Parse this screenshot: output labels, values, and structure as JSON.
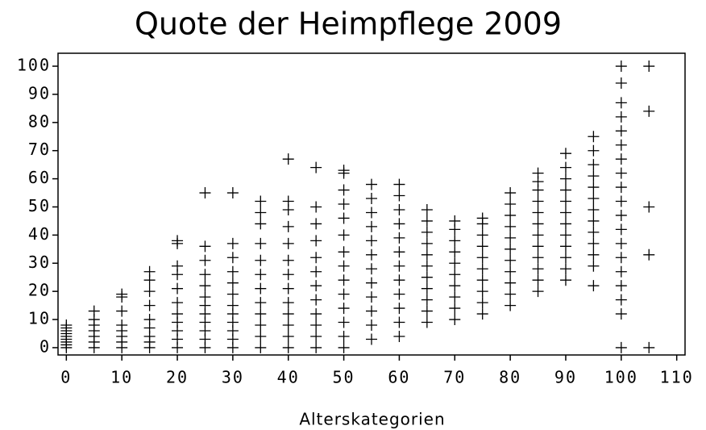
{
  "chart_data": {
    "type": "scatter",
    "title": "Quote der Heimpflege 2009",
    "xlabel": "Alterskategorien",
    "color": "#000000",
    "x": [
      0,
      0,
      0,
      0,
      0,
      0,
      0,
      0,
      0,
      5,
      5,
      5,
      5,
      5,
      5,
      5,
      10,
      10,
      10,
      10,
      10,
      10,
      10,
      10,
      15,
      15,
      15,
      15,
      15,
      15,
      15,
      15,
      15,
      20,
      20,
      20,
      20,
      20,
      20,
      20,
      20,
      20,
      20,
      20,
      25,
      25,
      25,
      25,
      25,
      25,
      25,
      25,
      25,
      25,
      25,
      25,
      30,
      30,
      30,
      30,
      30,
      30,
      30,
      30,
      30,
      30,
      30,
      30,
      35,
      35,
      35,
      35,
      35,
      35,
      35,
      35,
      35,
      35,
      35,
      35,
      40,
      40,
      40,
      40,
      40,
      40,
      40,
      40,
      40,
      40,
      40,
      40,
      40,
      45,
      45,
      45,
      45,
      45,
      45,
      45,
      45,
      45,
      45,
      45,
      45,
      50,
      50,
      50,
      50,
      50,
      50,
      50,
      50,
      50,
      50,
      50,
      50,
      50,
      50,
      55,
      55,
      55,
      55,
      55,
      55,
      55,
      55,
      55,
      55,
      55,
      55,
      60,
      60,
      60,
      60,
      60,
      60,
      60,
      60,
      60,
      60,
      60,
      60,
      65,
      65,
      65,
      65,
      65,
      65,
      65,
      65,
      65,
      65,
      65,
      70,
      70,
      70,
      70,
      70,
      70,
      70,
      70,
      70,
      70,
      75,
      75,
      75,
      75,
      75,
      75,
      75,
      75,
      75,
      75,
      80,
      80,
      80,
      80,
      80,
      80,
      80,
      80,
      80,
      80,
      80,
      85,
      85,
      85,
      85,
      85,
      85,
      85,
      85,
      85,
      85,
      85,
      85,
      90,
      90,
      90,
      90,
      90,
      90,
      90,
      90,
      90,
      90,
      90,
      90,
      95,
      95,
      95,
      95,
      95,
      95,
      95,
      95,
      95,
      95,
      95,
      95,
      95,
      100,
      100,
      100,
      100,
      100,
      100,
      100,
      100,
      100,
      100,
      100,
      100,
      100,
      100,
      100,
      100,
      100,
      100,
      100,
      105,
      105,
      105,
      105,
      105
    ],
    "values": [
      0,
      1,
      2,
      3,
      4,
      5,
      6,
      7,
      8,
      0,
      2,
      4,
      6,
      8,
      10,
      13,
      0,
      2,
      4,
      6,
      8,
      13,
      18,
      19,
      0,
      2,
      4,
      7,
      10,
      15,
      20,
      24,
      27,
      0,
      3,
      6,
      9,
      12,
      16,
      21,
      26,
      29,
      37,
      38,
      0,
      3,
      6,
      9,
      12,
      15,
      18,
      22,
      26,
      31,
      36,
      55,
      0,
      3,
      6,
      9,
      12,
      15,
      19,
      23,
      27,
      32,
      37,
      55,
      0,
      4,
      8,
      12,
      16,
      21,
      26,
      31,
      37,
      44,
      48,
      52,
      0,
      4,
      8,
      12,
      16,
      21,
      26,
      31,
      37,
      43,
      49,
      52,
      67,
      0,
      4,
      8,
      12,
      17,
      22,
      27,
      32,
      38,
      44,
      50,
      64,
      0,
      4,
      9,
      14,
      19,
      24,
      29,
      34,
      40,
      46,
      51,
      56,
      62,
      63,
      3,
      8,
      13,
      18,
      23,
      28,
      33,
      38,
      43,
      48,
      53,
      58,
      4,
      9,
      14,
      19,
      24,
      29,
      34,
      39,
      44,
      49,
      54,
      58,
      9,
      13,
      17,
      21,
      25,
      29,
      33,
      37,
      41,
      45,
      49,
      10,
      14,
      18,
      22,
      26,
      30,
      34,
      38,
      42,
      45,
      12,
      16,
      20,
      24,
      28,
      32,
      36,
      40,
      44,
      46,
      15,
      19,
      23,
      27,
      31,
      35,
      39,
      43,
      47,
      51,
      55,
      20,
      24,
      28,
      32,
      36,
      40,
      44,
      48,
      52,
      56,
      59,
      62,
      24,
      28,
      32,
      36,
      40,
      44,
      48,
      52,
      56,
      60,
      64,
      69,
      22,
      29,
      33,
      37,
      41,
      45,
      49,
      53,
      57,
      61,
      65,
      70,
      75,
      0,
      12,
      17,
      22,
      27,
      32,
      37,
      42,
      47,
      52,
      57,
      62,
      67,
      72,
      77,
      82,
      87,
      94,
      100,
      0,
      33,
      50,
      84,
      100
    ],
    "xlim": [
      -1.5,
      111.5
    ],
    "ylim": [
      -2.6,
      104.6
    ],
    "xticks": [
      0,
      10,
      20,
      30,
      40,
      50,
      60,
      70,
      80,
      90,
      100,
      110
    ],
    "yticks": [
      0,
      10,
      20,
      30,
      40,
      50,
      60,
      70,
      80,
      90,
      100
    ]
  }
}
